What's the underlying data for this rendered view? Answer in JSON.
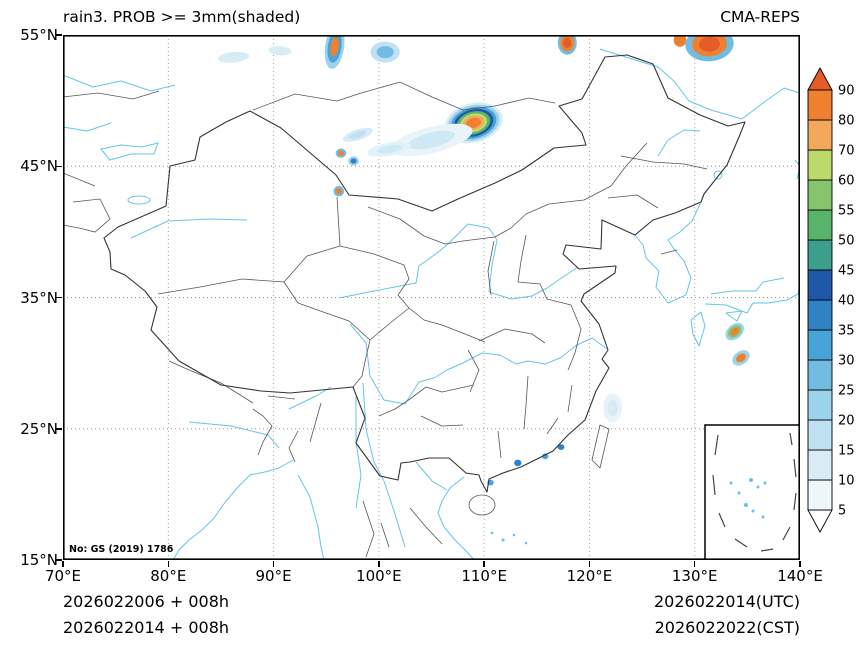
{
  "header": {
    "title": "rain3. PROB >= 3mm(shaded)",
    "model_label": "CMA-REPS"
  },
  "axes": {
    "lat_ticks": [
      "55°N",
      "45°N",
      "35°N",
      "25°N",
      "15°N"
    ],
    "lon_ticks": [
      "70°E",
      "80°E",
      "90°E",
      "100°E",
      "110°E",
      "120°E",
      "130°E",
      "140°E"
    ]
  },
  "map": {
    "watermark": "No: GS (2019) 1786"
  },
  "colorbar": {
    "orientation": "vertical",
    "extend": "both",
    "levels": [
      5,
      10,
      15,
      20,
      25,
      30,
      35,
      40,
      45,
      50,
      55,
      60,
      70,
      80,
      90
    ],
    "colors_bottom_to_top": [
      "#ffffff",
      "#eef6f9",
      "#d8ecf6",
      "#bfe1f2",
      "#9cd3ec",
      "#72bce2",
      "#48a3d7",
      "#2f82c3",
      "#2058a8",
      "#3c9e8c",
      "#58b46a",
      "#87c56c",
      "#bcd96c",
      "#f2a95b",
      "#ee8030",
      "#e55c26"
    ]
  },
  "footer": {
    "init_lines": [
      "2026022006 + 008h",
      "2026022014 + 008h"
    ],
    "valid_lines": [
      "2026022014(UTC)",
      "2026022022(CST)"
    ]
  },
  "precip_features": [
    {
      "lon": 109.0,
      "lat": 48.3,
      "rx": 2.8,
      "ry": 1.5,
      "rot": -15,
      "rings": [
        "#d8ecf6",
        "#9cd3ec",
        "#48a3d7",
        "#2058a8",
        "#58b46a",
        "#bcd96c",
        "#f2a95b",
        "#ee8030"
      ]
    },
    {
      "lon": 105.0,
      "lat": 47.0,
      "rx": 4.0,
      "ry": 1.0,
      "rot": -14,
      "rings": [
        "#e9f4fa",
        "#cfe8f5"
      ]
    },
    {
      "lon": 101.0,
      "lat": 46.3,
      "rx": 2.1,
      "ry": 0.5,
      "rot": -10,
      "rings": [
        "#e3f1f8",
        "#cfe8f5"
      ]
    },
    {
      "lon": 98.0,
      "lat": 47.4,
      "rx": 1.5,
      "ry": 0.4,
      "rot": -18,
      "rings": [
        "#d8ecf6",
        "#bfe1f2"
      ]
    },
    {
      "lon": 96.4,
      "lat": 46.0,
      "rx": 0.5,
      "ry": 0.35,
      "rot": 0,
      "rings": [
        "#72bce2",
        "#ee8030"
      ]
    },
    {
      "lon": 97.6,
      "lat": 45.4,
      "rx": 0.5,
      "ry": 0.35,
      "rot": 0,
      "rings": [
        "#9cd3ec",
        "#2f82c3"
      ]
    },
    {
      "lon": 95.8,
      "lat": 54.1,
      "rx": 0.9,
      "ry": 1.7,
      "rot": 8,
      "rings": [
        "#9cd3ec",
        "#48a3d7",
        "#ee8030"
      ]
    },
    {
      "lon": 86.2,
      "lat": 53.3,
      "rx": 1.5,
      "ry": 0.4,
      "rot": -6,
      "rings": [
        "#d8ecf6"
      ]
    },
    {
      "lon": 90.6,
      "lat": 53.8,
      "rx": 1.1,
      "ry": 0.35,
      "rot": 4,
      "rings": [
        "#d8ecf6"
      ]
    },
    {
      "lon": 100.6,
      "lat": 53.7,
      "rx": 1.4,
      "ry": 0.8,
      "rot": 0,
      "rings": [
        "#bfe1f2",
        "#72bce2"
      ]
    },
    {
      "lon": 117.9,
      "lat": 54.4,
      "rx": 0.9,
      "ry": 0.9,
      "rot": 0,
      "rings": [
        "#72bce2",
        "#ee8030",
        "#e55c26"
      ]
    },
    {
      "lon": 128.6,
      "lat": 54.6,
      "rx": 0.6,
      "ry": 0.5,
      "rot": 0,
      "rings": [
        "#ee8030"
      ]
    },
    {
      "lon": 131.4,
      "lat": 54.3,
      "rx": 2.3,
      "ry": 1.3,
      "rot": -4,
      "rings": [
        "#72bce2",
        "#ee8030",
        "#e55c26"
      ]
    },
    {
      "lon": 96.2,
      "lat": 43.1,
      "rx": 0.5,
      "ry": 0.4,
      "rot": 0,
      "rings": [
        "#72bce2",
        "#ee8030"
      ]
    },
    {
      "lon": 133.8,
      "lat": 32.4,
      "rx": 1.0,
      "ry": 0.55,
      "rot": -40,
      "rings": [
        "#9cd3ec",
        "#87c56c",
        "#ee8030"
      ]
    },
    {
      "lon": 134.4,
      "lat": 30.4,
      "rx": 0.9,
      "ry": 0.5,
      "rot": -35,
      "rings": [
        "#9cd3ec",
        "#ee8030"
      ]
    },
    {
      "lon": 122.2,
      "lat": 26.6,
      "rx": 0.9,
      "ry": 1.1,
      "rot": 0,
      "rings": [
        "#e9f4fa",
        "#d8ecf6"
      ]
    },
    {
      "lon": 113.2,
      "lat": 22.4,
      "rx": 0.35,
      "ry": 0.25,
      "rot": 0,
      "rings": [
        "#2f82c3"
      ]
    },
    {
      "lon": 115.8,
      "lat": 22.9,
      "rx": 0.3,
      "ry": 0.22,
      "rot": 0,
      "rings": [
        "#48a3d7"
      ]
    },
    {
      "lon": 117.3,
      "lat": 23.6,
      "rx": 0.32,
      "ry": 0.22,
      "rot": 0,
      "rings": [
        "#2f82c3"
      ]
    },
    {
      "lon": 110.6,
      "lat": 20.9,
      "rx": 0.3,
      "ry": 0.22,
      "rot": 0,
      "rings": [
        "#48a3d7"
      ]
    }
  ]
}
